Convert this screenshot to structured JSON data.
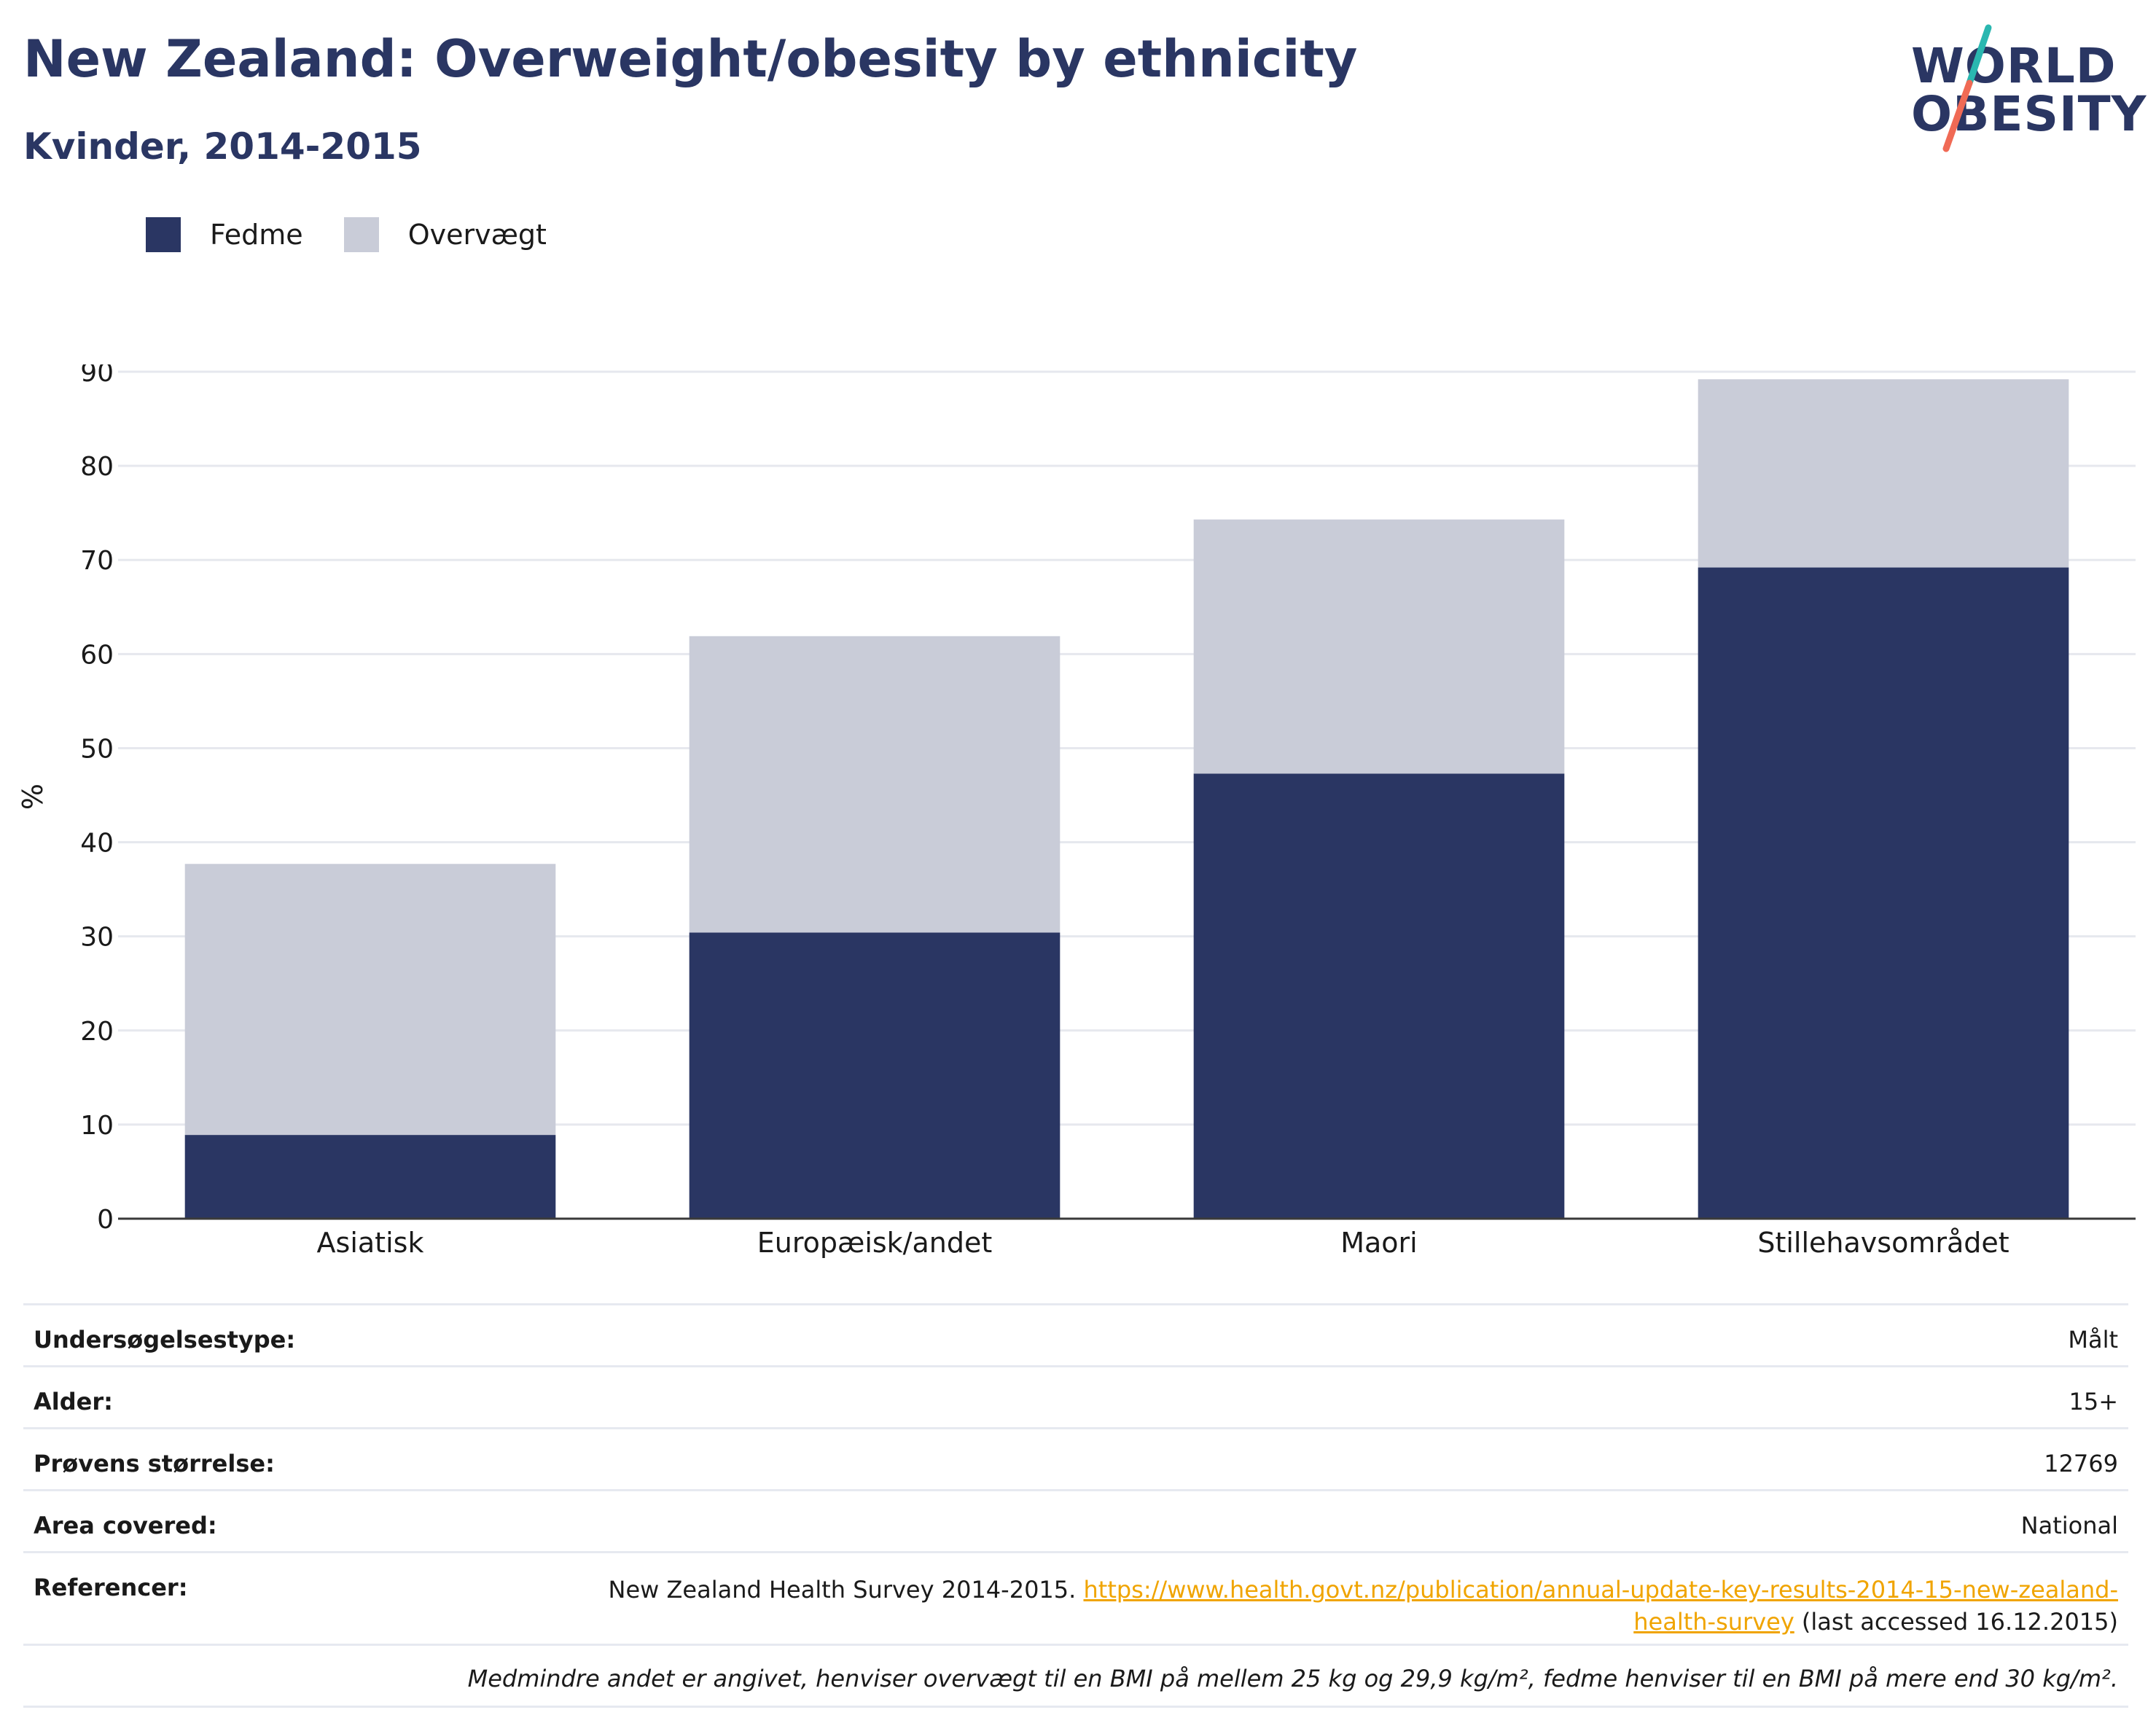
{
  "header": {
    "title": "New Zealand: Overweight/obesity by ethnicity",
    "subtitle": "Kvinder, 2014-2015"
  },
  "logo": {
    "line1": "WORLD",
    "line2": "OBESITY"
  },
  "legend": [
    {
      "label": "Fedme",
      "color": "#2a3663"
    },
    {
      "label": "Overvægt",
      "color": "#c9ccd8"
    }
  ],
  "chart_data": {
    "type": "bar",
    "stacked": true,
    "title": "",
    "xlabel": "",
    "ylabel": "%",
    "ylim": [
      0,
      90
    ],
    "yticks": [
      0,
      10,
      20,
      30,
      40,
      50,
      60,
      70,
      80,
      90
    ],
    "grid": true,
    "legend_position": "top-left",
    "categories": [
      "Asiatisk",
      "Europæisk/andet",
      "Maori",
      "Stillehavsområdet"
    ],
    "series": [
      {
        "name": "Fedme",
        "color": "#2a3663",
        "values": [
          8.9,
          30.4,
          47.3,
          69.2
        ]
      },
      {
        "name": "Overvægt",
        "color": "#c9ccd8",
        "values": [
          28.8,
          31.5,
          27.0,
          20.0
        ]
      }
    ]
  },
  "meta": {
    "survey_type": {
      "label": "Undersøgelsestype:",
      "value": "Målt"
    },
    "age": {
      "label": "Alder:",
      "value": "15+"
    },
    "sample_size": {
      "label": "Prøvens størrelse:",
      "value": "12769"
    },
    "area": {
      "label": "Area covered:",
      "value": "National"
    },
    "references": {
      "label": "Referencer:",
      "text_before": "New Zealand Health Survey 2014-2015. ",
      "link": "https://www.health.govt.nz/publication/annual-update-key-results-2014-15-new-zealand-health-survey",
      "text_after": " (last accessed 16.12.2015)"
    },
    "note": "Medmindre andet er angivet, henviser overvægt til en BMI på mellem 25 kg og 29,9 kg/m², fedme henviser til en BMI på mere end 30 kg/m²."
  }
}
